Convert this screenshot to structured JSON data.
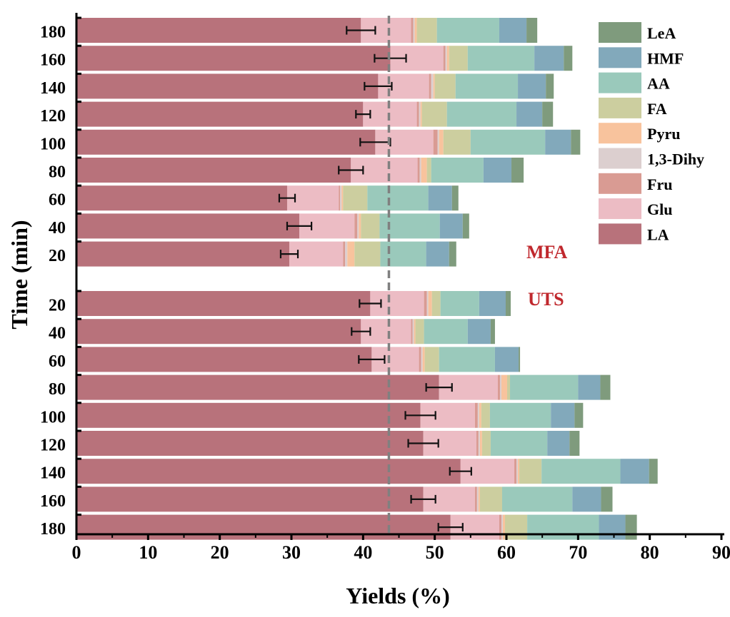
{
  "chart_data": {
    "type": "bar",
    "orientation": "horizontal",
    "stacked": true,
    "xlabel": "Yields (%)",
    "ylabel": "Time (min)",
    "xlim": [
      0,
      90
    ],
    "xticks": [
      "0",
      "10",
      "20",
      "30",
      "40",
      "50",
      "60",
      "70",
      "80",
      "90"
    ],
    "legend_position": "top-right",
    "reference_line_x": 43.6,
    "annotations": [
      "MFA",
      "UTS"
    ],
    "components": [
      "LA",
      "Glu",
      "Fru",
      "1,3-Dihy",
      "Pyru",
      "FA",
      "AA",
      "HMF",
      "LeA"
    ],
    "legend_order": [
      "LeA",
      "HMF",
      "AA",
      "FA",
      "Pyru",
      "1,3-Dihy",
      "Fru",
      "Glu",
      "LA"
    ],
    "colors": {
      "LA": "#b8727b",
      "Glu": "#ecbcc4",
      "Fru": "#d99b93",
      "1,3-Dihy": "#dccfcf",
      "Pyru": "#f8c39d",
      "FA": "#ccce9f",
      "AA": "#9ac9bb",
      "HMF": "#82a9bb",
      "LeA": "#7f9b7d"
    },
    "groups": [
      {
        "name": "MFA",
        "bars": [
          {
            "time": "180",
            "values": [
              39.7,
              7.0,
              0.3,
              0.2,
              0.3,
              2.8,
              8.7,
              3.8,
              1.5
            ],
            "error": 2.0
          },
          {
            "time": "160",
            "values": [
              43.8,
              7.4,
              0.3,
              0.2,
              0.3,
              2.6,
              9.3,
              4.1,
              1.2
            ],
            "error": 2.2
          },
          {
            "time": "140",
            "values": [
              42.1,
              7.1,
              0.3,
              0.3,
              0.2,
              2.9,
              8.7,
              3.9,
              1.1
            ],
            "error": 1.9
          },
          {
            "time": "120",
            "values": [
              40.0,
              7.5,
              0.3,
              0.2,
              0.2,
              3.5,
              9.7,
              3.6,
              1.5
            ],
            "error": 1.0
          },
          {
            "time": "100",
            "values": [
              41.7,
              8.1,
              0.6,
              0.2,
              0.6,
              3.8,
              10.4,
              3.6,
              1.3
            ],
            "error": 2.1
          },
          {
            "time": "80",
            "values": [
              38.3,
              9.3,
              0.3,
              0.2,
              0.8,
              0.6,
              7.3,
              3.9,
              1.7
            ],
            "error": 1.7
          },
          {
            "time": "60",
            "values": [
              29.4,
              7.2,
              0.2,
              0.2,
              0.2,
              3.4,
              8.5,
              3.3,
              0.9
            ],
            "error": 1.1
          },
          {
            "time": "40",
            "values": [
              31.1,
              7.7,
              0.4,
              0.2,
              0.3,
              2.6,
              8.4,
              3.2,
              0.9
            ],
            "error": 1.7
          },
          {
            "time": "20",
            "values": [
              29.7,
              7.5,
              0.3,
              0.3,
              1.0,
              3.6,
              6.4,
              3.2,
              1.0
            ],
            "error": 1.2
          }
        ]
      },
      {
        "name": "UTS",
        "bars": [
          {
            "time": "20",
            "values": [
              41.0,
              7.5,
              0.4,
              0.2,
              0.5,
              1.2,
              5.4,
              3.7,
              0.7
            ],
            "error": 1.5
          },
          {
            "time": "40",
            "values": [
              39.7,
              7.0,
              0.2,
              0.2,
              0.2,
              1.2,
              6.1,
              3.2,
              0.6
            ],
            "error": 1.3
          },
          {
            "time": "60",
            "values": [
              41.2,
              6.6,
              0.3,
              0.2,
              0.3,
              2.0,
              7.8,
              3.3,
              0.2
            ],
            "error": 1.8
          },
          {
            "time": "80",
            "values": [
              50.6,
              8.2,
              0.3,
              0.2,
              0.8,
              0.4,
              9.5,
              3.1,
              1.4
            ],
            "error": 1.8
          },
          {
            "time": "100",
            "values": [
              48.0,
              7.6,
              0.4,
              0.2,
              0.3,
              1.2,
              8.5,
              3.3,
              1.2
            ],
            "error": 2.1
          },
          {
            "time": "120",
            "values": [
              48.4,
              7.4,
              0.3,
              0.2,
              0.3,
              1.2,
              7.9,
              3.1,
              1.4
            ],
            "error": 2.1
          },
          {
            "time": "140",
            "values": [
              53.6,
              7.5,
              0.3,
              0.2,
              0.2,
              3.1,
              11.0,
              4.0,
              1.2
            ],
            "error": 1.5
          },
          {
            "time": "160",
            "values": [
              48.4,
              7.2,
              0.3,
              0.2,
              0.2,
              3.1,
              9.8,
              4.0,
              1.6
            ],
            "error": 1.7
          },
          {
            "time": "180",
            "values": [
              52.2,
              6.8,
              0.3,
              0.2,
              0.3,
              3.1,
              10.0,
              3.7,
              1.6
            ],
            "error": 1.7
          }
        ]
      }
    ]
  }
}
